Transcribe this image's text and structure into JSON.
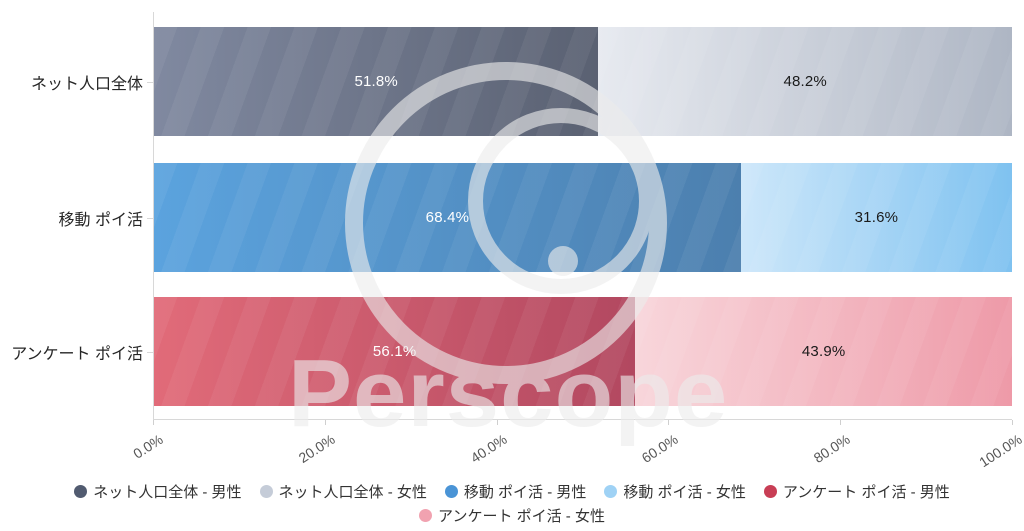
{
  "watermark": {
    "text": "Perscope"
  },
  "chart_data": {
    "type": "bar",
    "orientation": "horizontal",
    "stacked": true,
    "unit": "%",
    "title": "",
    "xlabel": "",
    "ylabel": "",
    "xlim": [
      0,
      100
    ],
    "grid": false,
    "legend_position": "bottom",
    "categories": [
      "ネット人口全体",
      "移動 ポイ活",
      "アンケート ポイ活"
    ],
    "series": [
      {
        "name": "男性",
        "values": [
          51.8,
          68.4,
          56.1
        ],
        "labels": [
          "51.8%",
          "68.4%",
          "56.1%"
        ]
      },
      {
        "name": "女性",
        "values": [
          48.2,
          31.6,
          43.9
        ],
        "labels": [
          "48.2%",
          "31.6%",
          "43.9%"
        ]
      }
    ],
    "x_ticks": [
      "0.0%",
      "20.0%",
      "40.0%",
      "60.0%",
      "80.0%",
      "100.0%"
    ],
    "segment_styles": [
      {
        "male_gradient": [
          "#8089a0",
          "#5a6172"
        ],
        "male_label_color": "#ffffff",
        "female_gradient": [
          "#e7eaf0",
          "#aeb6c4"
        ],
        "female_label_color": "#1a1a1a"
      },
      {
        "male_gradient": [
          "#5ba3de",
          "#4c7fae"
        ],
        "male_label_color": "#ffffff",
        "female_gradient": [
          "#cde7fa",
          "#7fc2f0"
        ],
        "female_label_color": "#1a1a1a"
      },
      {
        "male_gradient": [
          "#e16b79",
          "#b24860"
        ],
        "male_label_color": "#ffffff",
        "female_gradient": [
          "#f8d6db",
          "#ee9aa8"
        ],
        "female_label_color": "#1a1a1a"
      }
    ],
    "legend": [
      {
        "label": "ネット人口全体 - 男性",
        "color": "#515b70"
      },
      {
        "label": "ネット人口全体 - 女性",
        "color": "#c5ccd8"
      },
      {
        "label": "移動 ポイ活 - 男性",
        "color": "#4a94d6"
      },
      {
        "label": "移動 ポイ活 - 女性",
        "color": "#9fd2f5"
      },
      {
        "label": "アンケート ポイ活 - 男性",
        "color": "#c83e55"
      },
      {
        "label": "アンケート ポイ活 - 女性",
        "color": "#f1a2b0"
      }
    ]
  }
}
